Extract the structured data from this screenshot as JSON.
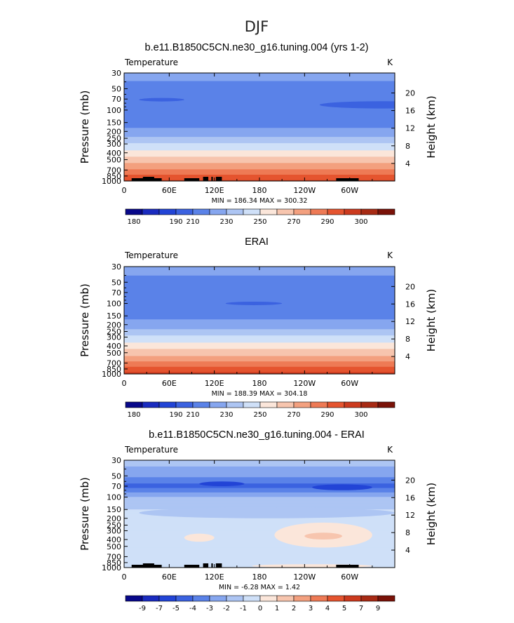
{
  "figure_title": "DJF",
  "chart_data": [
    {
      "type": "heatmap",
      "title": "b.e11.B1850C5CN.ne30_g16.tuning.004 (yrs 1-2)",
      "variable": "Temperature",
      "units": "K",
      "ylabel": "Pressure (mb)",
      "ylabel2": "Height (km)",
      "x_ticks": [
        "0",
        "60E",
        "120E",
        "180",
        "120W",
        "60W"
      ],
      "x_range": [
        0,
        360
      ],
      "y_ticks": [
        "30",
        "50",
        "70",
        "100",
        "150",
        "200",
        "250",
        "300",
        "400",
        "500",
        "700",
        "850",
        "1000"
      ],
      "y_range": [
        1000,
        30
      ],
      "y2_ticks": [
        "4",
        "8",
        "12",
        "16",
        "20"
      ],
      "stats": "MIN = 186.34   MAX = 300.32",
      "min": 186.34,
      "max": 300.32,
      "colorbar": {
        "labels": [
          "180",
          "190",
          "210",
          "230",
          "250",
          "270",
          "290",
          "300"
        ],
        "levels": [
          180,
          185,
          190,
          200,
          210,
          220,
          230,
          240,
          250,
          260,
          270,
          280,
          290,
          295,
          300
        ],
        "colors": [
          "#08088a",
          "#1a2bbf",
          "#2244d6",
          "#3b62e0",
          "#5a82e8",
          "#86a6ef",
          "#adc5f3",
          "#cfe0f8",
          "#fbe6da",
          "#f7c5ae",
          "#f3a07f",
          "#ee7a55",
          "#e5542f",
          "#cc3a1e",
          "#a72a14",
          "#7a1208"
        ]
      },
      "levels_profile": [
        {
          "p": 30,
          "value": 214
        },
        {
          "p": 50,
          "value": 206
        },
        {
          "p": 70,
          "value": 200
        },
        {
          "p": 100,
          "value": 201
        },
        {
          "p": 150,
          "value": 206
        },
        {
          "p": 200,
          "value": 213
        },
        {
          "p": 250,
          "value": 222
        },
        {
          "p": 300,
          "value": 231
        },
        {
          "p": 400,
          "value": 244
        },
        {
          "p": 500,
          "value": 254
        },
        {
          "p": 700,
          "value": 271
        },
        {
          "p": 850,
          "value": 283
        },
        {
          "p": 1000,
          "value": 292
        }
      ],
      "features": [
        {
          "lon": [
            260,
            430
          ],
          "p": [
            75,
            95
          ],
          "value": 195
        },
        {
          "lon": [
            20,
            80
          ],
          "p": [
            68,
            75
          ],
          "value": 195
        }
      ],
      "topography": [
        [
          10,
          50
        ],
        [
          25,
          40
        ],
        [
          80,
          100
        ],
        [
          105,
          112
        ],
        [
          116,
          118
        ],
        [
          122,
          130
        ],
        [
          282,
          312
        ]
      ]
    },
    {
      "type": "heatmap",
      "title": "ERAI",
      "variable": "Temperature",
      "units": "K",
      "ylabel": "Pressure (mb)",
      "ylabel2": "Height (km)",
      "x_ticks": [
        "0",
        "60E",
        "120E",
        "180",
        "120W",
        "60W"
      ],
      "x_range": [
        0,
        360
      ],
      "y_ticks": [
        "30",
        "50",
        "70",
        "100",
        "150",
        "200",
        "250",
        "300",
        "400",
        "500",
        "700",
        "850",
        "1000"
      ],
      "y_range": [
        1000,
        30
      ],
      "y2_ticks": [
        "4",
        "8",
        "12",
        "16",
        "20"
      ],
      "stats": "MIN = 188.39   MAX = 304.18",
      "min": 188.39,
      "max": 304.18,
      "colorbar": {
        "labels": [
          "180",
          "190",
          "210",
          "230",
          "250",
          "270",
          "290",
          "300"
        ],
        "levels": [
          180,
          185,
          190,
          200,
          210,
          220,
          230,
          240,
          250,
          260,
          270,
          280,
          290,
          295,
          300
        ],
        "colors": [
          "#08088a",
          "#1a2bbf",
          "#2244d6",
          "#3b62e0",
          "#5a82e8",
          "#86a6ef",
          "#adc5f3",
          "#cfe0f8",
          "#fbe6da",
          "#f7c5ae",
          "#f3a07f",
          "#ee7a55",
          "#e5542f",
          "#cc3a1e",
          "#a72a14",
          "#7a1208"
        ]
      },
      "levels_profile": [
        {
          "p": 30,
          "value": 214
        },
        {
          "p": 50,
          "value": 207
        },
        {
          "p": 70,
          "value": 202
        },
        {
          "p": 100,
          "value": 201
        },
        {
          "p": 150,
          "value": 207
        },
        {
          "p": 200,
          "value": 214
        },
        {
          "p": 250,
          "value": 223
        },
        {
          "p": 300,
          "value": 232
        },
        {
          "p": 400,
          "value": 245
        },
        {
          "p": 500,
          "value": 255
        },
        {
          "p": 700,
          "value": 272
        },
        {
          "p": 850,
          "value": 285
        },
        {
          "p": 1000,
          "value": 294
        }
      ],
      "features": [
        {
          "lon": [
            135,
            210
          ],
          "p": [
            95,
            105
          ],
          "value": 195
        }
      ],
      "topography": []
    },
    {
      "type": "heatmap",
      "title": "b.e11.B1850C5CN.ne30_g16.tuning.004 - ERAI",
      "variable": "Temperature",
      "units": "K",
      "ylabel": "Pressure (mb)",
      "ylabel2": "Height (km)",
      "x_ticks": [
        "0",
        "60E",
        "120E",
        "180",
        "120W",
        "60W"
      ],
      "x_range": [
        0,
        360
      ],
      "y_ticks": [
        "30",
        "50",
        "70",
        "100",
        "150",
        "200",
        "250",
        "300",
        "400",
        "500",
        "700",
        "850",
        "1000"
      ],
      "y_range": [
        1000,
        30
      ],
      "y2_ticks": [
        "4",
        "8",
        "12",
        "16",
        "20"
      ],
      "stats": "MIN =  -6.28   MAX =    1.42",
      "min": -6.28,
      "max": 1.42,
      "colorbar": {
        "labels": [
          "-9",
          "-7",
          "-5",
          "-4",
          "-3",
          "-2",
          "-1",
          "0",
          "1",
          "2",
          "3",
          "4",
          "5",
          "7",
          "9"
        ],
        "levels": [
          -9,
          -7,
          -5,
          -4,
          -3,
          -2,
          -1,
          0,
          1,
          2,
          3,
          4,
          5,
          7,
          9
        ],
        "colors": [
          "#08088a",
          "#1a2bbf",
          "#2244d6",
          "#3b62e0",
          "#5a82e8",
          "#86a6ef",
          "#adc5f3",
          "#cfe0f8",
          "#fbe6da",
          "#f7c5ae",
          "#f3a07f",
          "#ee7a55",
          "#e5542f",
          "#cc3a1e",
          "#a72a14",
          "#7a1208"
        ]
      },
      "levels_profile": [
        {
          "p": 30,
          "value": -1.5
        },
        {
          "p": 45,
          "value": -2.5
        },
        {
          "p": 60,
          "value": -3.5
        },
        {
          "p": 70,
          "value": -4.5
        },
        {
          "p": 80,
          "value": -3.5
        },
        {
          "p": 90,
          "value": -2.5
        },
        {
          "p": 110,
          "value": -1.5
        },
        {
          "p": 200,
          "value": -0.5
        },
        {
          "p": 500,
          "value": -0.5
        },
        {
          "p": 800,
          "value": -0.5
        },
        {
          "p": 1000,
          "value": -0.5
        }
      ],
      "features": [
        {
          "lon": [
            250,
            330
          ],
          "p": [
            66,
            80
          ],
          "value": -5.5
        },
        {
          "lon": [
            100,
            160
          ],
          "p": [
            60,
            70
          ],
          "value": -5.5
        },
        {
          "lon": [
            200,
            330
          ],
          "p": [
            230,
            520
          ],
          "value": 0.5
        },
        {
          "lon": [
            240,
            290
          ],
          "p": [
            320,
            400
          ],
          "value": 1.3
        },
        {
          "lon": [
            80,
            120
          ],
          "p": [
            330,
            430
          ],
          "value": 0.5
        },
        {
          "lon": [
            20,
            360
          ],
          "p": [
            140,
            200
          ],
          "value": -1.5
        },
        {
          "lon": [
            170,
            330
          ],
          "p": [
            900,
            1000
          ],
          "value": 0.5
        }
      ],
      "topography": [
        [
          10,
          50
        ],
        [
          25,
          40
        ],
        [
          80,
          100
        ],
        [
          105,
          112
        ],
        [
          116,
          118
        ],
        [
          122,
          130
        ],
        [
          282,
          312
        ]
      ]
    }
  ]
}
